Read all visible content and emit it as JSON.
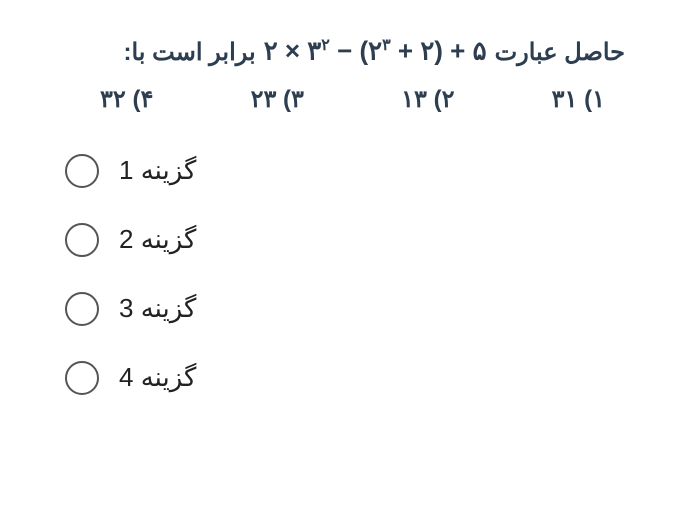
{
  "question": {
    "prefix": "حاصل عبارت",
    "expression_html": "۲ × ۳<sup>۲</sup> − (۲<sup>۳</sup> + ۲) + ۵",
    "suffix": "برابر است با:",
    "text_color": "#2d3e50",
    "font_size": 24
  },
  "answers": [
    {
      "num": "۱)",
      "val": "۳۱"
    },
    {
      "num": "۲)",
      "val": "۱۳"
    },
    {
      "num": "۳)",
      "val": "۲۳"
    },
    {
      "num": "۴)",
      "val": "۳۲"
    }
  ],
  "options": [
    {
      "label": "گزینه 1"
    },
    {
      "label": "گزینه 2"
    },
    {
      "label": "گزینه 3"
    },
    {
      "label": "گزینه 4"
    }
  ],
  "style": {
    "background": "#ffffff",
    "radio_border": "#555",
    "option_text_color": "#222"
  }
}
